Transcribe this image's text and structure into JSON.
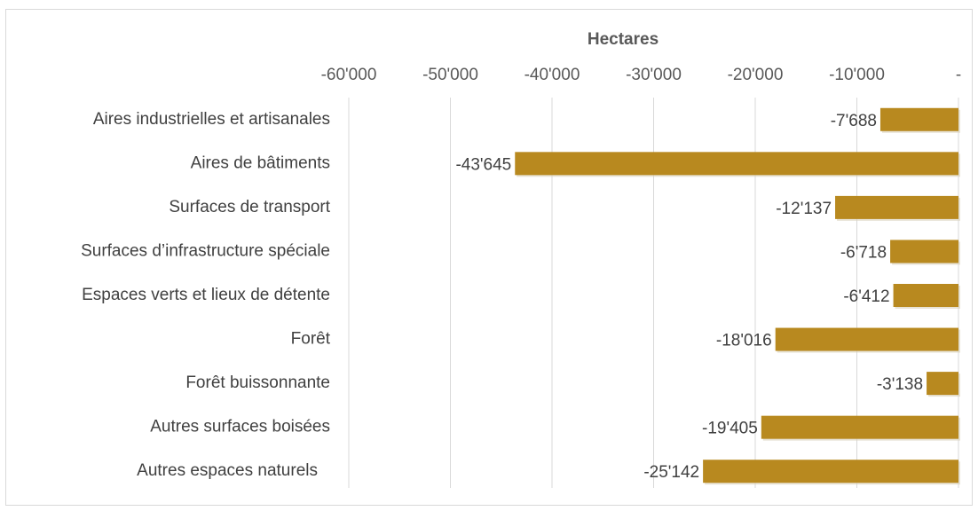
{
  "chart_data": {
    "type": "bar",
    "orientation": "horizontal",
    "x_label": "Hectares",
    "categories": [
      "Aires industrielles et artisanales",
      "Aires de bâtiments",
      "Surfaces de transport",
      "Surfaces d’infrastructure spéciale",
      "Espaces verts et lieux de détente",
      "Forêt",
      "Forêt buissonnante",
      "Autres surfaces boisées",
      "Autres espaces naturels"
    ],
    "values": [
      -7688,
      -43645,
      -12137,
      -6718,
      -6412,
      -18016,
      -3138,
      -19405,
      -25142
    ],
    "value_labels": [
      "-7'688",
      "-43'645",
      "-12'137",
      "-6'718",
      "-6'412",
      "-18'016",
      "-3'138",
      "-19'405",
      "-25'142"
    ],
    "color": "#b8891f",
    "xlim": [
      -60000,
      0
    ],
    "xticks": [
      {
        "value": -60000,
        "label": "-60'000"
      },
      {
        "value": -50000,
        "label": "-50'000"
      },
      {
        "value": -40000,
        "label": "-40'000"
      },
      {
        "value": -30000,
        "label": "-30'000"
      },
      {
        "value": -20000,
        "label": "-20'000"
      },
      {
        "value": -10000,
        "label": "-10'000"
      },
      {
        "value": 0,
        "label": "-"
      }
    ],
    "grid": true
  }
}
